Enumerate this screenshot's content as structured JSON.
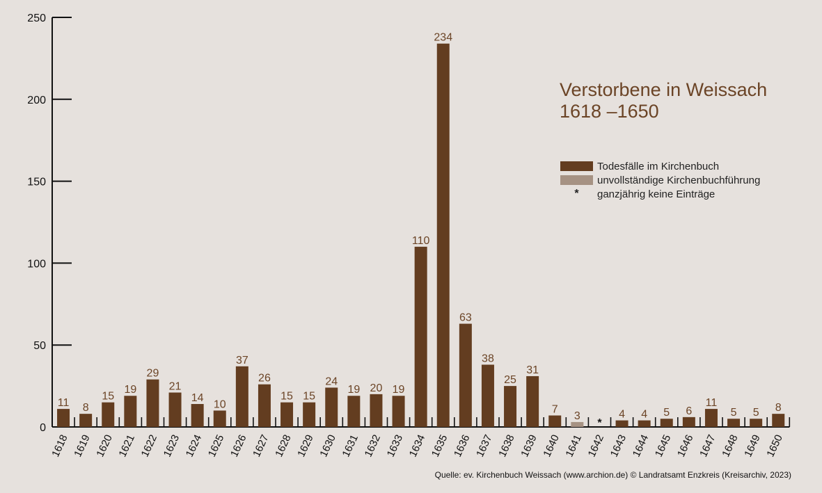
{
  "chart_data": {
    "type": "bar",
    "title": "Verstorbene in Weissach",
    "subtitle": "1618 –1650",
    "categories": [
      "1618",
      "1619",
      "1620",
      "1621",
      "1622",
      "1623",
      "1624",
      "1625",
      "1626",
      "1627",
      "1628",
      "1629",
      "1630",
      "1631",
      "1632",
      "1633",
      "1634",
      "1635",
      "1636",
      "1637",
      "1638",
      "1639",
      "1640",
      "1641",
      "1642",
      "1643",
      "1644",
      "1645",
      "1646",
      "1647",
      "1648",
      "1649",
      "1650"
    ],
    "values": [
      11,
      8,
      15,
      19,
      29,
      21,
      14,
      10,
      37,
      26,
      15,
      15,
      24,
      19,
      20,
      19,
      110,
      234,
      63,
      38,
      25,
      31,
      7,
      3,
      null,
      4,
      4,
      5,
      6,
      11,
      5,
      5,
      8
    ],
    "status": [
      "full",
      "full",
      "full",
      "full",
      "full",
      "full",
      "full",
      "full",
      "full",
      "full",
      "full",
      "full",
      "full",
      "full",
      "full",
      "full",
      "full",
      "full",
      "full",
      "full",
      "full",
      "full",
      "full",
      "incomplete",
      "none",
      "full",
      "full",
      "full",
      "full",
      "full",
      "full",
      "full",
      "full"
    ],
    "yticks": [
      0,
      50,
      100,
      150,
      200,
      250
    ],
    "ylim": [
      0,
      250
    ],
    "grid": false,
    "legend_position": "right",
    "legend": [
      {
        "key": "full",
        "label": "Todesfälle im Kirchenbuch",
        "color": "#633d20"
      },
      {
        "key": "incomplete",
        "label": "unvollständige Kirchenbuchführung",
        "color": "#a69283"
      },
      {
        "key": "none",
        "label": "ganzjährig keine Einträge",
        "symbol": "*"
      }
    ],
    "no_entry_symbol": "*",
    "colors": {
      "bar": "#633d20",
      "incomplete": "#a69283",
      "label": "#6b4426",
      "axis": "#111111",
      "background": "#e6e1dd"
    }
  },
  "source": "Quelle: ev. Kirchenbuch Weissach (www.archion.de)  © Landratsamt Enzkreis (Kreisarchiv, 2023)"
}
